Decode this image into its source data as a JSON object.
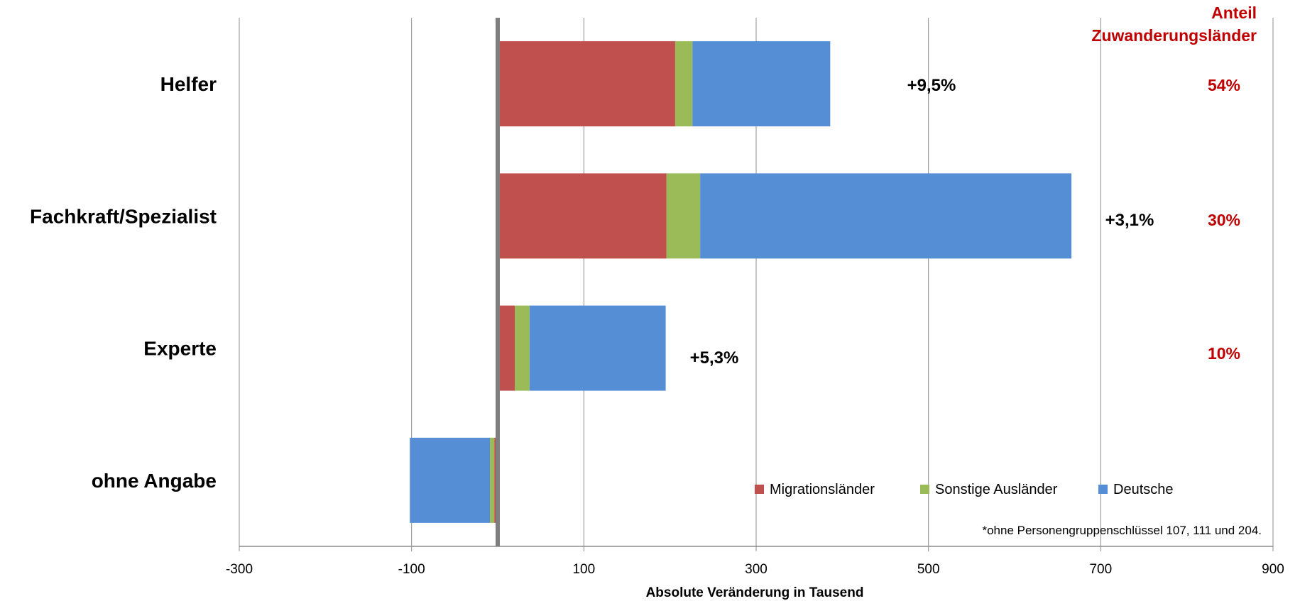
{
  "chart_data": {
    "type": "bar",
    "orientation": "horizontal",
    "stacked": true,
    "categories": [
      "Helfer",
      "Fachkraft/Spezialist",
      "Experte",
      "ohne Angabe"
    ],
    "series": [
      {
        "name": "Migrationsländer",
        "color": "#C0504D",
        "values": [
          206,
          196,
          20,
          -4
        ]
      },
      {
        "name": "Sonstige Ausländer",
        "color": "#9BBB59",
        "values": [
          20,
          39,
          17,
          -5
        ]
      },
      {
        "name": "Deutsche",
        "color": "#558ED5",
        "values": [
          160,
          431,
          158,
          -93
        ]
      }
    ],
    "change_labels": [
      "+9,5%",
      "+3,1%",
      "+5,3%",
      ""
    ],
    "share_header": [
      "Anteil",
      "Zuwanderungsländer"
    ],
    "share_labels": [
      "54%",
      "30%",
      "10%",
      ""
    ],
    "share_color": "#C00000",
    "xlabel": "Absolute Veränderung in Tausend",
    "xlim": [
      -300,
      900
    ],
    "xticks": [
      -300,
      -100,
      100,
      300,
      500,
      700,
      900
    ],
    "xtick_labels": [
      "-300",
      "-100",
      "100",
      "300",
      "500",
      "700",
      "900"
    ],
    "footnote": "*ohne Personengruppenschlüssel 107, 111 und 204.",
    "legend_position": "bottom-right",
    "grid": true
  }
}
